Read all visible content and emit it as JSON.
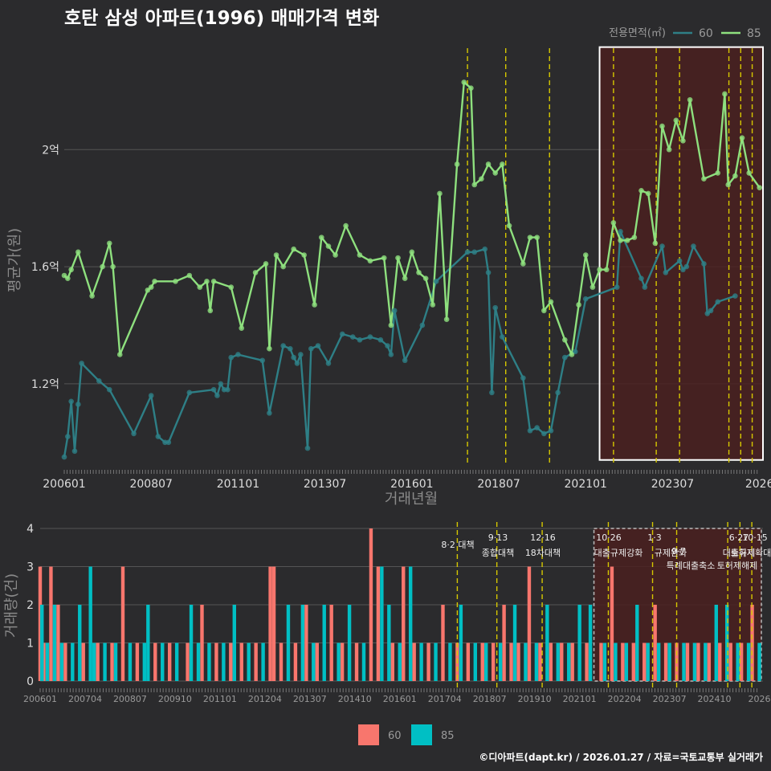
{
  "title": "호탄 삼성 아파트(1996) 매매가격 변화",
  "footer": "©디아파트(dapt.kr) / 2026.01.27 / 자료=국토교통부 실거래가",
  "colors": {
    "bg": "#2b2b2d",
    "series60": "#2e7f86",
    "series85": "#8ee07e",
    "bar60": "#f8766d",
    "bar85": "#00bfc4",
    "policy": "#d6c800",
    "highlight": "#4a2020"
  },
  "chart_data": [
    {
      "type": "line",
      "title": "호탄 삼성 아파트(1996) 매매가격 변화",
      "xlabel": "거래년월",
      "ylabel": "평균가(원)",
      "xlim": [
        2006.0,
        2026.1
      ],
      "ylim": [
        0.92,
        2.36
      ],
      "x_ticks": [
        2006.0,
        2008.5,
        2011.0,
        2013.5,
        2016.0,
        2018.5,
        2021.0,
        2023.5,
        2026.0
      ],
      "x_tick_labels": [
        "200601",
        "200807",
        "201101",
        "201307",
        "201601",
        "201807",
        "202101",
        "202307",
        "2026"
      ],
      "y_ticks": [
        1.2,
        1.6,
        2.0
      ],
      "y_tick_labels": [
        "1.2억",
        "1.6억",
        "2억"
      ],
      "legend_title": "전용면적(㎡)",
      "series": [
        {
          "name": "60",
          "x": [
            2006.0,
            2006.1,
            2006.2,
            2006.3,
            2006.4,
            2006.5,
            2007.0,
            2007.3,
            2008.0,
            2008.5,
            2008.7,
            2008.9,
            2009.0,
            2009.6,
            2010.3,
            2010.4,
            2010.5,
            2010.6,
            2010.7,
            2010.8,
            2011.0,
            2011.7,
            2011.9,
            2012.3,
            2012.5,
            2012.6,
            2012.7,
            2012.8,
            2013.0,
            2013.1,
            2013.3,
            2013.6,
            2014.0,
            2014.3,
            2014.5,
            2014.8,
            2015.1,
            2015.3,
            2015.4,
            2015.5,
            2015.8,
            2016.3,
            2016.7,
            2017.6,
            2017.8,
            2018.1,
            2018.2,
            2018.3,
            2018.4,
            2018.6,
            2019.2,
            2019.4,
            2019.6,
            2019.8,
            2020.0,
            2020.2,
            2020.4,
            2020.7,
            2021.0,
            2021.9,
            2022.0,
            2022.6,
            2022.7,
            2023.2,
            2023.3,
            2023.7,
            2023.8,
            2023.9,
            2024.1,
            2024.4,
            2024.5,
            2024.6,
            2024.8,
            2025.3
          ],
          "values": [
            0.95,
            1.02,
            1.14,
            0.97,
            1.13,
            1.27,
            1.21,
            1.18,
            1.03,
            1.16,
            1.02,
            1.0,
            1.0,
            1.17,
            1.18,
            1.16,
            1.2,
            1.18,
            1.18,
            1.29,
            1.3,
            1.28,
            1.1,
            1.33,
            1.32,
            1.29,
            1.27,
            1.3,
            0.98,
            1.32,
            1.33,
            1.27,
            1.37,
            1.36,
            1.35,
            1.36,
            1.35,
            1.33,
            1.3,
            1.45,
            1.28,
            1.4,
            1.55,
            1.65,
            1.65,
            1.66,
            1.58,
            1.17,
            1.46,
            1.36,
            1.22,
            1.04,
            1.05,
            1.03,
            1.04,
            1.17,
            1.29,
            1.31,
            1.49,
            1.53,
            1.72,
            1.56,
            1.53,
            1.67,
            1.58,
            1.62,
            1.59,
            1.6,
            1.67,
            1.61,
            1.44,
            1.45,
            1.48,
            1.5
          ]
        },
        {
          "name": "85",
          "x": [
            2006.0,
            2006.1,
            2006.2,
            2006.4,
            2006.8,
            2007.1,
            2007.3,
            2007.4,
            2007.6,
            2008.4,
            2008.5,
            2008.6,
            2009.2,
            2009.6,
            2009.9,
            2010.1,
            2010.2,
            2010.3,
            2010.8,
            2011.1,
            2011.5,
            2011.8,
            2011.9,
            2012.1,
            2012.3,
            2012.6,
            2012.9,
            2013.2,
            2013.4,
            2013.6,
            2013.8,
            2014.1,
            2014.5,
            2014.8,
            2015.2,
            2015.4,
            2015.6,
            2015.8,
            2016.0,
            2016.2,
            2016.4,
            2016.6,
            2016.8,
            2017.0,
            2017.3,
            2017.5,
            2017.7,
            2017.8,
            2018.0,
            2018.2,
            2018.4,
            2018.6,
            2018.8,
            2019.2,
            2019.4,
            2019.6,
            2019.8,
            2020.0,
            2020.4,
            2020.6,
            2020.8,
            2021.0,
            2021.2,
            2021.4,
            2021.6,
            2021.8,
            2022.0,
            2022.2,
            2022.4,
            2022.6,
            2022.8,
            2023.0,
            2023.2,
            2023.4,
            2023.6,
            2023.8,
            2024.0,
            2024.4,
            2024.8,
            2025.0,
            2025.1,
            2025.3,
            2025.5,
            2025.7,
            2026.0
          ],
          "values": [
            1.57,
            1.56,
            1.59,
            1.65,
            1.5,
            1.6,
            1.68,
            1.6,
            1.3,
            1.52,
            1.53,
            1.55,
            1.55,
            1.57,
            1.53,
            1.55,
            1.45,
            1.55,
            1.53,
            1.39,
            1.58,
            1.61,
            1.32,
            1.64,
            1.6,
            1.66,
            1.64,
            1.47,
            1.7,
            1.67,
            1.64,
            1.74,
            1.64,
            1.62,
            1.63,
            1.4,
            1.63,
            1.56,
            1.65,
            1.58,
            1.56,
            1.47,
            1.85,
            1.42,
            1.95,
            2.23,
            2.21,
            1.88,
            1.9,
            1.95,
            1.92,
            1.95,
            1.74,
            1.61,
            1.7,
            1.7,
            1.45,
            1.48,
            1.35,
            1.3,
            1.47,
            1.64,
            1.53,
            1.59,
            1.59,
            1.75,
            1.69,
            1.69,
            1.7,
            1.86,
            1.85,
            1.68,
            2.08,
            2.0,
            2.1,
            2.03,
            2.17,
            1.9,
            1.92,
            2.19,
            1.88,
            1.91,
            2.04,
            1.92,
            1.87
          ]
        }
      ],
      "policy_lines": [
        2017.6,
        2018.7,
        2019.96,
        2021.8,
        2023.03,
        2023.7,
        2025.12,
        2025.46,
        2025.79
      ],
      "highlight_range": [
        2021.4,
        2026.1
      ],
      "highlight_ylim": [
        0.94,
        2.35
      ]
    },
    {
      "type": "bar",
      "xlabel": "",
      "ylabel": "거래량(건)",
      "xlim": [
        2006.0,
        2026.1
      ],
      "ylim": [
        0,
        4
      ],
      "y_ticks": [
        0,
        1,
        2,
        3,
        4
      ],
      "y_tick_labels": [
        "0",
        "1",
        "2",
        "3",
        "4"
      ],
      "x_ticks": [
        2006.0,
        2007.25,
        2008.5,
        2009.75,
        2011.0,
        2012.25,
        2013.5,
        2014.75,
        2016.0,
        2017.25,
        2018.5,
        2019.75,
        2021.0,
        2022.25,
        2023.5,
        2024.75,
        2026.0
      ],
      "x_tick_labels": [
        "200601",
        "200704",
        "200807",
        "200910",
        "201101",
        "201204",
        "201307",
        "201410",
        "201601",
        "201704",
        "201807",
        "201910",
        "202101",
        "202204",
        "202307",
        "202410",
        "2026"
      ],
      "legend": [
        "60",
        "85"
      ],
      "series": [
        {
          "name": "60",
          "x": [
            2006.0,
            2006.1,
            2006.3,
            2006.5,
            2006.7,
            2007.2,
            2007.6,
            2008.0,
            2008.3,
            2008.7,
            2009.2,
            2009.6,
            2010.1,
            2010.5,
            2010.9,
            2011.3,
            2011.6,
            2012.0,
            2012.4,
            2012.5,
            2012.7,
            2013.1,
            2013.4,
            2013.7,
            2014.1,
            2014.4,
            2014.8,
            2015.2,
            2015.4,
            2015.8,
            2016.1,
            2016.4,
            2016.8,
            2017.2,
            2017.6,
            2017.9,
            2018.3,
            2018.6,
            2018.9,
            2019.1,
            2019.3,
            2019.6,
            2019.9,
            2020.2,
            2020.5,
            2020.8,
            2021.2,
            2021.6,
            2021.9,
            2022.2,
            2022.5,
            2022.8,
            2023.1,
            2023.4,
            2023.7,
            2024.0,
            2024.3,
            2024.6,
            2024.9,
            2025.2,
            2025.5,
            2025.8
          ],
          "values": [
            3,
            1,
            3,
            2,
            1,
            1,
            1,
            1,
            3,
            1,
            1,
            1,
            1,
            2,
            1,
            1,
            1,
            1,
            3,
            3,
            1,
            1,
            2,
            1,
            2,
            1,
            1,
            4,
            3,
            1,
            3,
            1,
            1,
            2,
            1,
            1,
            1,
            1,
            2,
            1,
            1,
            3,
            1,
            1,
            1,
            1,
            1,
            1,
            3,
            1,
            1,
            1,
            2,
            1,
            1,
            1,
            1,
            1,
            1,
            1,
            1,
            2
          ]
        },
        {
          "name": "85",
          "x": [
            2006.05,
            2006.2,
            2006.4,
            2006.6,
            2006.9,
            2007.1,
            2007.4,
            2007.5,
            2007.8,
            2008.1,
            2008.5,
            2008.9,
            2009.0,
            2009.4,
            2009.8,
            2010.2,
            2010.4,
            2010.7,
            2011.1,
            2011.4,
            2011.8,
            2012.2,
            2012.9,
            2013.3,
            2013.6,
            2013.9,
            2014.3,
            2014.6,
            2015.0,
            2015.5,
            2015.7,
            2016.0,
            2016.3,
            2016.6,
            2017.0,
            2017.4,
            2017.7,
            2018.1,
            2018.4,
            2018.8,
            2019.2,
            2019.5,
            2019.8,
            2020.1,
            2020.4,
            2020.7,
            2021.0,
            2021.3,
            2021.7,
            2022.0,
            2022.3,
            2022.6,
            2022.9,
            2023.2,
            2023.5,
            2023.9,
            2024.2,
            2024.5,
            2024.8,
            2025.1,
            2025.4,
            2025.7,
            2026.0
          ],
          "values": [
            2,
            1,
            2,
            1,
            1,
            2,
            3,
            1,
            1,
            1,
            1,
            1,
            2,
            1,
            1,
            2,
            1,
            1,
            1,
            2,
            1,
            1,
            2,
            2,
            1,
            2,
            1,
            2,
            1,
            3,
            2,
            1,
            3,
            1,
            1,
            1,
            2,
            1,
            1,
            1,
            2,
            1,
            1,
            2,
            1,
            1,
            2,
            2,
            1,
            1,
            1,
            2,
            1,
            1,
            1,
            1,
            1,
            1,
            2,
            2,
            1,
            1,
            1
          ]
        }
      ],
      "policy_lines": [
        2017.6,
        2018.7,
        2019.96,
        2021.8,
        2023.03,
        2023.7,
        2025.12,
        2025.46,
        2025.79
      ],
      "annotations": [
        "8·2 대책",
        "9·13",
        "종합대책",
        "12·16",
        "18차대책",
        "10·26",
        "대출규제강화",
        "1·3",
        "규제완화",
        "9·7",
        "특례대출축소",
        "6·27",
        "대출규제",
        "10·15",
        "토허제확대",
        "토허제해제"
      ],
      "highlight_range": [
        2021.4,
        2026.1
      ]
    }
  ]
}
